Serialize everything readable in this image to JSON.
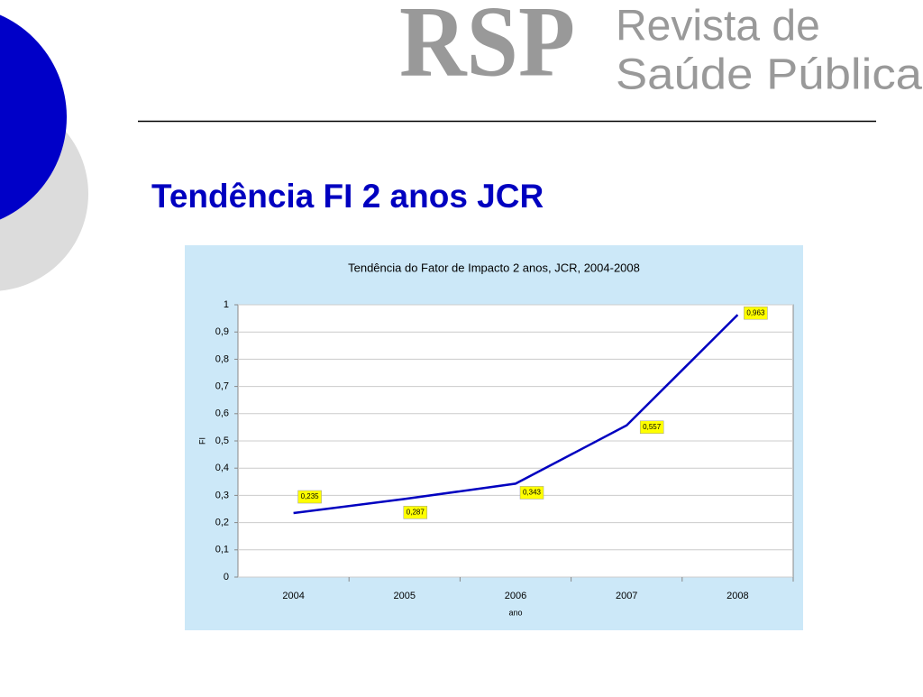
{
  "header": {
    "logo": "RSP",
    "journal_line1": "Revista de",
    "journal_line2": "Saúde Pública"
  },
  "slide_title": "Tendência FI 2 anos JCR",
  "chart_data": {
    "type": "line",
    "title": "Tendência do Fator de Impacto 2 anos, JCR, 2004-2008",
    "x_label": "ano",
    "y_label": "FI",
    "categories": [
      "2004",
      "2005",
      "2006",
      "2007",
      "2008"
    ],
    "series": [
      {
        "name": "FI",
        "color": "#0000c0",
        "values": [
          0.235,
          0.287,
          0.343,
          0.557,
          0.963
        ],
        "value_labels": [
          "0,235",
          "0,287",
          "0,343",
          "0,557",
          "0,963"
        ]
      }
    ],
    "ylim": [
      0,
      1
    ],
    "yticks": [
      0,
      {
        "value": 0.1,
        "label": "0,1"
      },
      {
        "value": 0.2,
        "label": "0,2"
      },
      {
        "value": 0.3,
        "label": "0,3"
      },
      {
        "value": 0.4,
        "label": "0,4"
      },
      {
        "value": 0.5,
        "label": "0,5"
      },
      {
        "value": 0.6,
        "label": "0,6"
      },
      {
        "value": 0.7,
        "label": "0,7"
      },
      {
        "value": 0.8,
        "label": "0,8"
      },
      {
        "value": 0.9,
        "label": "0,9"
      },
      1
    ],
    "grid": true
  }
}
